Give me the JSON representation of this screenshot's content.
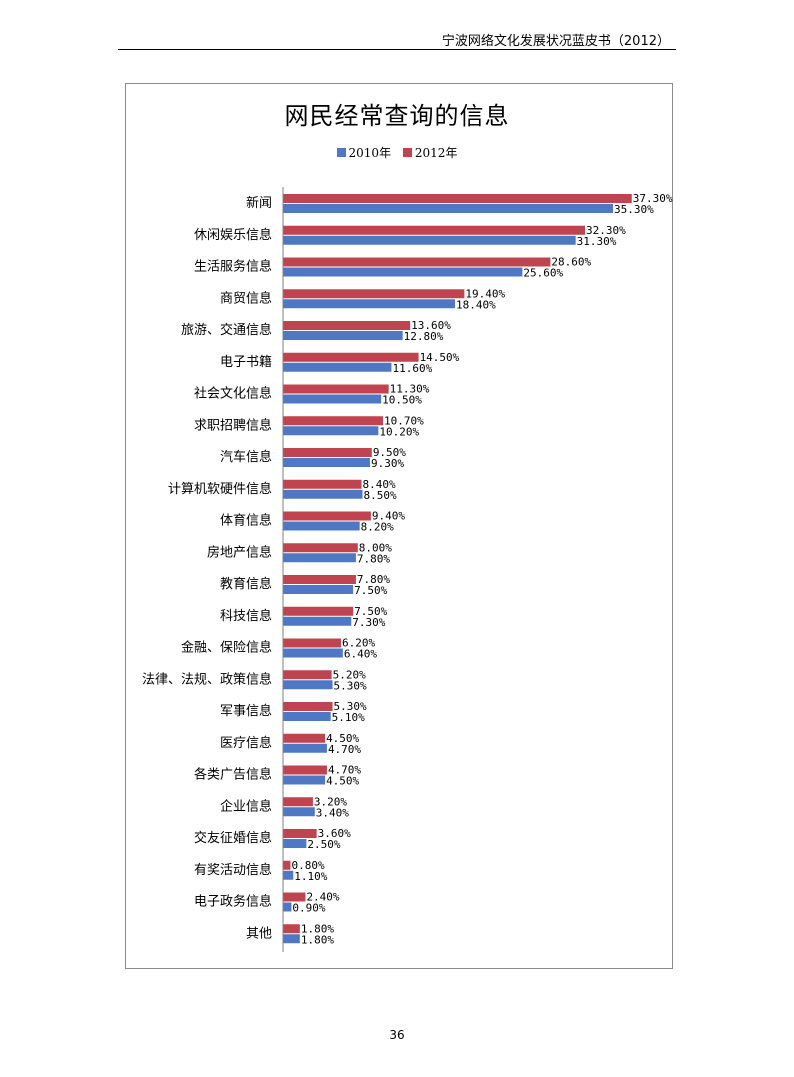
{
  "header": {
    "running_title": "宁波网络文化发展状况蓝皮书（2012）"
  },
  "footer": {
    "page_number": "36"
  },
  "chart_data": {
    "type": "bar",
    "orientation": "horizontal",
    "title": "网民经常查询的信息",
    "legend_position": "top",
    "grid": false,
    "xlabel": "",
    "ylabel": "",
    "value_suffix": "%",
    "categories": [
      "新闻",
      "休闲娱乐信息",
      "生活服务信息",
      "商贸信息",
      "旅游、交通信息",
      "电子书籍",
      "社会文化信息",
      "求职招聘信息",
      "汽车信息",
      "计算机软硬件信息",
      "体育信息",
      "房地产信息",
      "教育信息",
      "科技信息",
      "金融、保险信息",
      "法律、法规、政策信息",
      "军事信息",
      "医疗信息",
      "各类广告信息",
      "企业信息",
      "交友征婚信息",
      "有奖活动信息",
      "电子政务信息",
      "其他"
    ],
    "series": [
      {
        "name": "2010年",
        "color": "#4f78c4",
        "values": [
          35.3,
          31.3,
          25.6,
          18.4,
          12.8,
          11.6,
          10.5,
          10.2,
          9.3,
          8.5,
          8.2,
          7.8,
          7.5,
          7.3,
          6.4,
          5.3,
          5.1,
          4.7,
          4.5,
          3.4,
          2.5,
          1.1,
          0.9,
          1.8
        ]
      },
      {
        "name": "2012年",
        "color": "#c0444f",
        "values": [
          37.3,
          32.3,
          28.6,
          19.4,
          13.6,
          14.5,
          11.3,
          10.7,
          9.5,
          8.4,
          9.4,
          8.0,
          7.8,
          7.5,
          6.2,
          5.2,
          5.3,
          4.5,
          4.7,
          3.2,
          3.6,
          0.8,
          2.4,
          1.8
        ]
      }
    ]
  }
}
